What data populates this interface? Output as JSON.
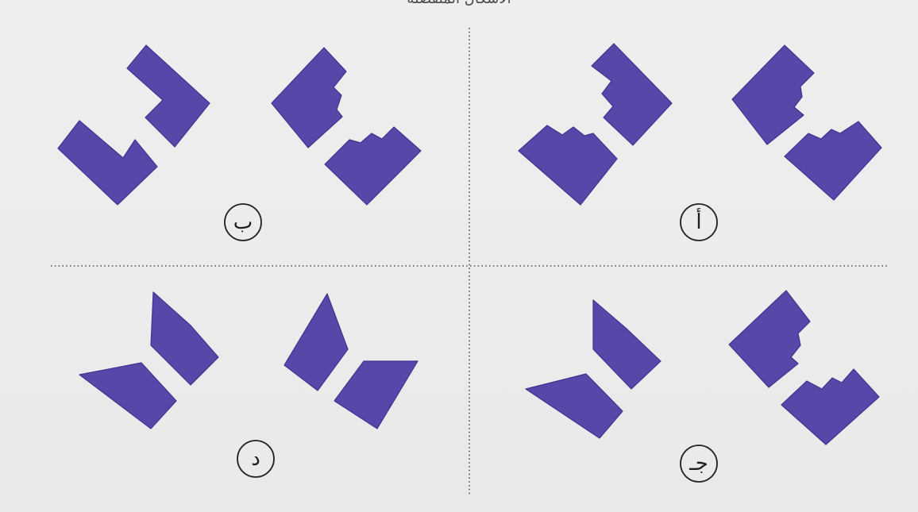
{
  "header": {
    "cut_text": "الأشكال المنفصلة"
  },
  "options": [
    {
      "id": "a",
      "label": "أ"
    },
    {
      "id": "b",
      "label": "ب"
    },
    {
      "id": "c",
      "label": "جـ"
    },
    {
      "id": "d",
      "label": "د"
    }
  ],
  "colors": {
    "shape_fill": "#5548a8",
    "shape_stroke": "#3f3590",
    "divider": "#555555",
    "text": "#1d1d1d"
  }
}
